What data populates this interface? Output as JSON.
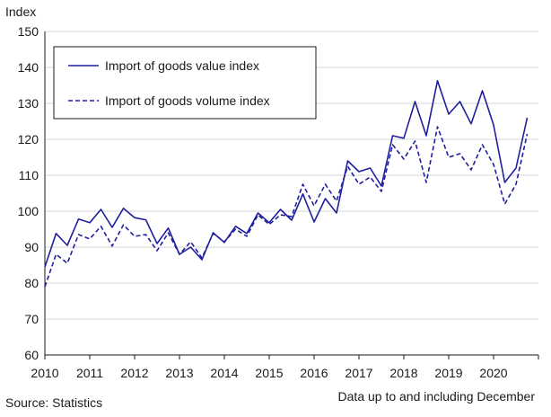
{
  "chart_data": {
    "type": "line",
    "ylabel": "Index",
    "ylim": [
      60,
      150
    ],
    "yticks": [
      60,
      70,
      80,
      90,
      100,
      110,
      120,
      130,
      140,
      150
    ],
    "xlim": [
      2010,
      2021
    ],
    "xticks": [
      "2010",
      "2011",
      "2012",
      "2013",
      "2014",
      "2015",
      "2016",
      "2017",
      "2018",
      "2019",
      "2020"
    ],
    "grid": true,
    "legend_position": "top-left",
    "line_color": "#1f1f9e",
    "series": [
      {
        "name": "Import of goods value index",
        "style": "solid",
        "x": [
          2010.0,
          2010.25,
          2010.5,
          2010.75,
          2011.0,
          2011.25,
          2011.5,
          2011.75,
          2012.0,
          2012.25,
          2012.5,
          2012.75,
          2013.0,
          2013.25,
          2013.5,
          2013.75,
          2014.0,
          2014.25,
          2014.5,
          2014.75,
          2015.0,
          2015.25,
          2015.5,
          2015.75,
          2016.0,
          2016.25,
          2016.5,
          2016.75,
          2017.0,
          2017.25,
          2017.5,
          2017.75,
          2018.0,
          2018.25,
          2018.5,
          2018.75,
          2019.0,
          2019.25,
          2019.5,
          2019.75,
          2020.0,
          2020.25,
          2020.5,
          2020.75
        ],
        "values": [
          84.5,
          93.8,
          90.5,
          97.8,
          96.8,
          100.5,
          95.5,
          100.8,
          98.2,
          97.6,
          91.0,
          95.3,
          88.0,
          90.0,
          86.5,
          94.0,
          91.3,
          95.8,
          93.8,
          99.5,
          96.8,
          100.5,
          97.5,
          104.8,
          97.0,
          103.5,
          99.5,
          114.0,
          111.0,
          112.0,
          107.0,
          121.0,
          120.3,
          130.5,
          121.0,
          136.3,
          127.0,
          130.5,
          124.3,
          133.5,
          124.0,
          108.0,
          112.0,
          126.0
        ]
      },
      {
        "name": "Import of goods volume index",
        "style": "dashed",
        "x": [
          2010.0,
          2010.25,
          2010.5,
          2010.75,
          2011.0,
          2011.25,
          2011.5,
          2011.75,
          2012.0,
          2012.25,
          2012.5,
          2012.75,
          2013.0,
          2013.25,
          2013.5,
          2013.75,
          2014.0,
          2014.25,
          2014.5,
          2014.75,
          2015.0,
          2015.25,
          2015.5,
          2015.75,
          2016.0,
          2016.25,
          2016.5,
          2016.75,
          2017.0,
          2017.25,
          2017.5,
          2017.75,
          2018.0,
          2018.25,
          2018.5,
          2018.75,
          2019.0,
          2019.25,
          2019.5,
          2019.75,
          2020.0,
          2020.25,
          2020.5,
          2020.75
        ],
        "values": [
          79.0,
          88.0,
          85.5,
          93.5,
          92.3,
          95.8,
          90.3,
          96.2,
          93.0,
          93.5,
          89.0,
          94.0,
          88.0,
          91.5,
          87.0,
          93.8,
          91.5,
          95.0,
          93.0,
          99.0,
          96.3,
          99.0,
          98.5,
          107.5,
          101.5,
          107.5,
          102.8,
          112.5,
          107.5,
          109.5,
          105.5,
          118.5,
          114.5,
          119.5,
          108.0,
          123.5,
          115.0,
          116.0,
          111.5,
          118.5,
          113.0,
          102.0,
          107.5,
          121.5
        ]
      }
    ]
  },
  "footer": {
    "source": "Source: Statistics",
    "note": "Data up to and including December"
  }
}
